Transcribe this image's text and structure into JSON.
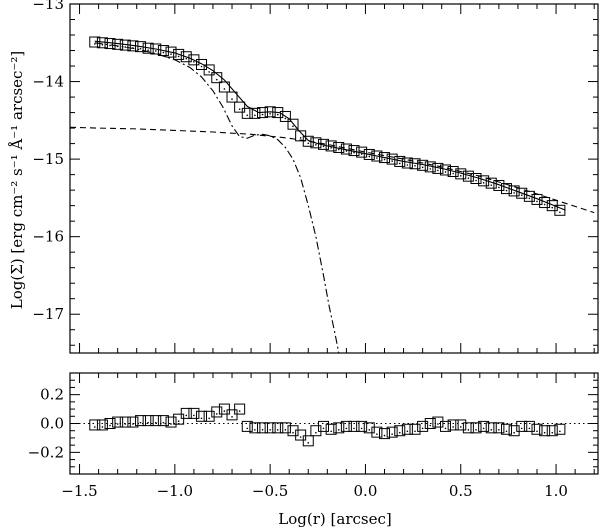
{
  "chart_data": [
    {
      "type": "scatter",
      "panel": "top",
      "title": "",
      "xlabel": "",
      "ylabel": "Log(Σ) [erg cm⁻² s⁻¹ Å⁻¹ arcsec⁻²]",
      "xlim": [
        -1.55,
        1.22
      ],
      "ylim": [
        -17.5,
        -13.0
      ],
      "y_inverted": true,
      "yticks": [
        -13,
        -14,
        -15,
        -16,
        -17
      ],
      "ytick_labels": [
        "−13",
        "−14",
        "−15",
        "−16",
        "−17"
      ],
      "xticks": [
        -1.5,
        -1.0,
        -0.5,
        0.0,
        0.5,
        1.0
      ],
      "grid": false,
      "legend": "none",
      "series": [
        {
          "marker": "square",
          "x": [
            -1.42,
            -1.38,
            -1.34,
            -1.3,
            -1.26,
            -1.22,
            -1.18,
            -1.14,
            -1.1,
            -1.06,
            -1.02,
            -0.98,
            -0.94,
            -0.9,
            -0.86,
            -0.82,
            -0.78,
            -0.74,
            -0.7,
            -0.66,
            -0.62,
            -0.58,
            -0.54,
            -0.5,
            -0.46,
            -0.42,
            -0.38,
            -0.34,
            -0.3,
            -0.26,
            -0.22,
            -0.18,
            -0.14,
            -0.1,
            -0.06,
            -0.02,
            0.02,
            0.06,
            0.1,
            0.14,
            0.18,
            0.22,
            0.26,
            0.3,
            0.34,
            0.38,
            0.42,
            0.46,
            0.5,
            0.54,
            0.58,
            0.62,
            0.66,
            0.7,
            0.74,
            0.78,
            0.82,
            0.86,
            0.9,
            0.94,
            0.98,
            1.02
          ],
          "y": [
            -13.49,
            -13.5,
            -13.51,
            -13.52,
            -13.53,
            -13.54,
            -13.55,
            -13.57,
            -13.58,
            -13.6,
            -13.62,
            -13.65,
            -13.68,
            -13.72,
            -13.78,
            -13.85,
            -13.95,
            -14.07,
            -14.2,
            -14.33,
            -14.41,
            -14.41,
            -14.4,
            -14.39,
            -14.4,
            -14.45,
            -14.55,
            -14.7,
            -14.77,
            -14.79,
            -14.81,
            -14.83,
            -14.85,
            -14.87,
            -14.89,
            -14.91,
            -14.94,
            -14.96,
            -14.98,
            -15.0,
            -15.03,
            -15.05,
            -15.06,
            -15.08,
            -15.1,
            -15.12,
            -15.14,
            -15.16,
            -15.19,
            -15.22,
            -15.25,
            -15.28,
            -15.31,
            -15.34,
            -15.38,
            -15.41,
            -15.44,
            -15.48,
            -15.52,
            -15.56,
            -15.6,
            -15.66
          ]
        },
        {
          "style": "solid",
          "x": [
            -1.42,
            -1.3,
            -1.2,
            -1.1,
            -1.0,
            -0.92,
            -0.86,
            -0.8,
            -0.74,
            -0.68,
            -0.62,
            -0.56,
            -0.5,
            -0.45,
            -0.4,
            -0.35,
            -0.3,
            -0.25,
            -0.2,
            -0.1,
            0.0,
            0.1,
            0.2,
            0.3,
            0.4,
            0.5,
            0.6,
            0.7,
            0.8,
            0.9,
            1.0,
            1.05
          ],
          "y": [
            -13.48,
            -13.51,
            -13.54,
            -13.58,
            -13.63,
            -13.7,
            -13.77,
            -13.86,
            -13.98,
            -14.15,
            -14.32,
            -14.4,
            -14.39,
            -14.4,
            -14.48,
            -14.63,
            -14.76,
            -14.8,
            -14.83,
            -14.88,
            -14.93,
            -14.98,
            -15.03,
            -15.07,
            -15.12,
            -15.18,
            -15.25,
            -15.33,
            -15.42,
            -15.51,
            -15.61,
            -15.66
          ]
        },
        {
          "style": "dashed",
          "x": [
            -1.55,
            -1.4,
            -1.2,
            -1.0,
            -0.8,
            -0.6,
            -0.4,
            -0.2,
            0.0,
            0.2,
            0.4,
            0.6,
            0.8,
            1.0,
            1.2
          ],
          "y": [
            -14.59,
            -14.6,
            -14.61,
            -14.63,
            -14.65,
            -14.68,
            -14.73,
            -14.81,
            -14.91,
            -15.0,
            -15.1,
            -15.22,
            -15.37,
            -15.53,
            -15.69
          ]
        },
        {
          "style": "dash-dot",
          "x": [
            -1.42,
            -1.3,
            -1.2,
            -1.1,
            -1.0,
            -0.92,
            -0.86,
            -0.8,
            -0.75,
            -0.7,
            -0.66,
            -0.62,
            -0.58,
            -0.54,
            -0.5,
            -0.46,
            -0.42,
            -0.38,
            -0.34,
            -0.3,
            -0.26,
            -0.22,
            -0.19,
            -0.16,
            -0.14
          ],
          "y": [
            -13.5,
            -13.54,
            -13.58,
            -13.64,
            -13.72,
            -13.82,
            -13.94,
            -14.12,
            -14.32,
            -14.57,
            -14.71,
            -14.73,
            -14.69,
            -14.68,
            -14.7,
            -14.75,
            -14.85,
            -15.0,
            -15.24,
            -15.6,
            -16.0,
            -16.5,
            -16.9,
            -17.25,
            -17.5
          ]
        }
      ]
    },
    {
      "type": "scatter",
      "panel": "bottom",
      "title": "",
      "xlabel": "Log(r) [arcsec]",
      "ylabel": "",
      "xlim": [
        -1.55,
        1.22
      ],
      "ylim": [
        -0.35,
        0.35
      ],
      "yticks": [
        0.2,
        0.0,
        -0.2
      ],
      "ytick_labels": [
        "0.2",
        "0.0",
        "−0.2"
      ],
      "xticks": [
        -1.5,
        -1.0,
        -0.5,
        0.0,
        0.5,
        1.0
      ],
      "xtick_labels": [
        "−1.5",
        "−1.0",
        "−0.5",
        "0.0",
        "0.5",
        "1.0"
      ],
      "grid": false,
      "legend": "none",
      "reference_line": {
        "y": 0.0,
        "style": "dotted"
      },
      "series": [
        {
          "marker": "square",
          "x": [
            -1.42,
            -1.38,
            -1.34,
            -1.3,
            -1.26,
            -1.22,
            -1.18,
            -1.14,
            -1.1,
            -1.06,
            -1.02,
            -0.98,
            -0.94,
            -0.9,
            -0.86,
            -0.82,
            -0.78,
            -0.74,
            -0.7,
            -0.66,
            -0.62,
            -0.58,
            -0.54,
            -0.5,
            -0.46,
            -0.42,
            -0.38,
            -0.34,
            -0.3,
            -0.26,
            -0.22,
            -0.18,
            -0.14,
            -0.1,
            -0.06,
            -0.02,
            0.02,
            0.06,
            0.1,
            0.14,
            0.18,
            0.22,
            0.26,
            0.3,
            0.34,
            0.38,
            0.42,
            0.46,
            0.5,
            0.54,
            0.58,
            0.62,
            0.66,
            0.7,
            0.74,
            0.78,
            0.82,
            0.86,
            0.9,
            0.94,
            0.98,
            1.02
          ],
          "y": [
            -0.01,
            -0.01,
            0.0,
            0.01,
            0.01,
            0.01,
            0.02,
            0.02,
            0.02,
            0.02,
            0.01,
            0.03,
            0.07,
            0.07,
            0.05,
            0.05,
            0.08,
            0.1,
            0.06,
            0.1,
            -0.02,
            -0.03,
            -0.03,
            -0.03,
            -0.03,
            -0.03,
            -0.05,
            -0.08,
            -0.12,
            -0.05,
            -0.02,
            -0.04,
            -0.03,
            -0.02,
            -0.02,
            -0.02,
            -0.03,
            -0.06,
            -0.07,
            -0.06,
            -0.05,
            -0.04,
            -0.04,
            -0.02,
            0.0,
            0.01,
            -0.02,
            -0.01,
            -0.01,
            -0.03,
            -0.03,
            -0.02,
            -0.03,
            -0.03,
            -0.04,
            -0.05,
            -0.02,
            -0.02,
            -0.04,
            -0.05,
            -0.05,
            -0.04
          ]
        }
      ]
    }
  ]
}
